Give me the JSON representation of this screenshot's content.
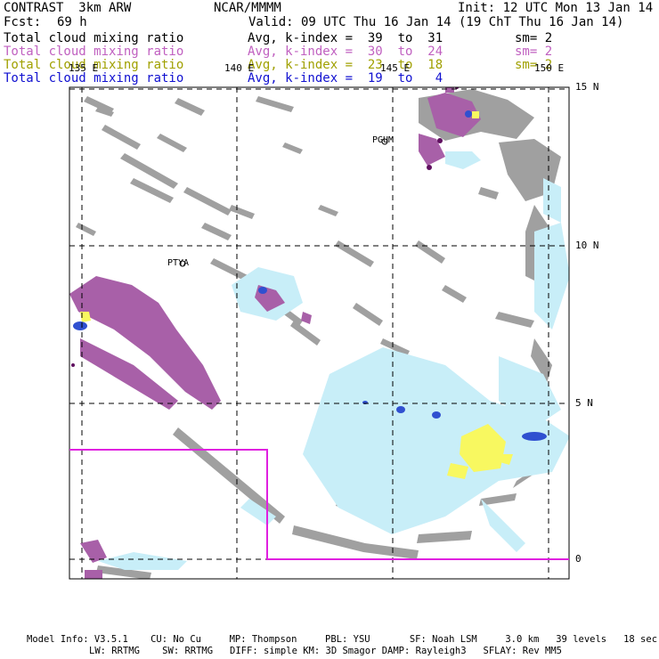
{
  "header": {
    "model": "CONTRAST  3km ARW",
    "org": "NCAR/MMMM",
    "init": "Init: 12 UTC Mon 13 Jan 14",
    "fcst_label": "Fcst:",
    "fcst_value": "69 h",
    "valid": "Valid: 09 UTC Thu 16 Jan 14 (19 ChT Thu 16 Jan 14)"
  },
  "fields": [
    {
      "name": "Total cloud mixing ratio",
      "range": "Avg, k-index =  39  to  31",
      "sm": "sm= 2",
      "color": "#000000"
    },
    {
      "name": "Total cloud mixing ratio",
      "range": "Avg, k-index =  30  to  24",
      "sm": "sm= 2",
      "color": "#c060c0"
    },
    {
      "name": "Total cloud mixing ratio",
      "range": "Avg, k-index =  23  to  18",
      "sm": "sm= 2",
      "color": "#a0a000"
    },
    {
      "name": "Total cloud mixing ratio",
      "range": "Avg, k-index =  19  to   4",
      "sm": "",
      "color": "#1010d0"
    }
  ],
  "map": {
    "lon_labels": [
      "135 E",
      "140 E",
      "145 E",
      "150 E"
    ],
    "lat_labels": [
      "15 N",
      "10 N",
      "5 N",
      "0"
    ],
    "stations": [
      "PGUM",
      "PTYA"
    ],
    "colors": {
      "gray": "#a0a0a0",
      "purple": "#a860a8",
      "lightblue": "#c8eef8",
      "blue": "#3050d0",
      "yellow": "#f8f860",
      "magenta_box": "#e020e0"
    }
  },
  "footer": {
    "line1": "Model Info: V3.5.1    CU: No Cu     MP: Thompson     PBL: YSU       SF: Noah LSM     3.0 km   39 levels   18 sec",
    "line2": "LW: RRTMG    SW: RRTMG   DIFF: simple KM: 3D Smagor DAMP: Rayleigh3   SFLAY: Rev MM5"
  }
}
